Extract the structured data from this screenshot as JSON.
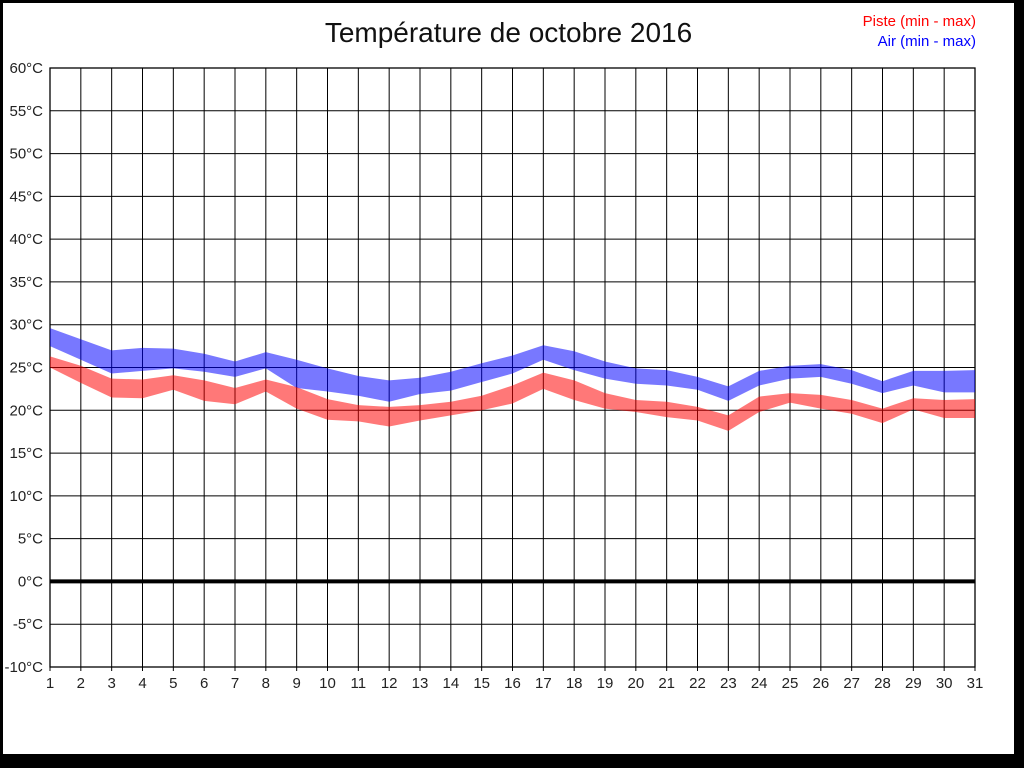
{
  "title": "Température de octobre 2016",
  "legend": {
    "piste": {
      "label": "Piste (min - max)",
      "color": "#ff0000"
    },
    "air": {
      "label": "Air (min - max)",
      "color": "#0000ff"
    }
  },
  "chart_data": {
    "type": "area",
    "title": "Température de octobre 2016",
    "xlabel": "",
    "ylabel": "",
    "ylim": [
      -10,
      60
    ],
    "ytick_step": 5,
    "y_tick_labels": [
      "-10°C",
      "-5°C",
      "0°C",
      "5°C",
      "10°C",
      "15°C",
      "20°C",
      "25°C",
      "30°C",
      "35°C",
      "40°C",
      "45°C",
      "50°C",
      "55°C",
      "60°C"
    ],
    "x": [
      1,
      2,
      3,
      4,
      5,
      6,
      7,
      8,
      9,
      10,
      11,
      12,
      13,
      14,
      15,
      16,
      17,
      18,
      19,
      20,
      21,
      22,
      23,
      24,
      25,
      26,
      27,
      28,
      29,
      30,
      31
    ],
    "grid": true,
    "zero_line": true,
    "legend_position": "top-right",
    "band_opacity": 0.53,
    "series": [
      {
        "name": "Air (min - max)",
        "band": "min-max",
        "color": "#0000ff",
        "max": [
          29.6,
          28.3,
          27.0,
          27.3,
          27.2,
          26.6,
          25.7,
          26.8,
          25.9,
          24.9,
          24.0,
          23.5,
          23.8,
          24.5,
          25.5,
          26.4,
          27.6,
          26.9,
          25.7,
          24.9,
          24.7,
          23.9,
          22.8,
          24.6,
          25.2,
          25.4,
          24.7,
          23.4,
          24.6,
          24.6,
          24.7
        ],
        "min": [
          27.5,
          25.9,
          24.3,
          24.6,
          24.9,
          24.5,
          23.9,
          24.9,
          22.6,
          22.2,
          21.7,
          21.0,
          21.9,
          22.3,
          23.3,
          24.3,
          25.9,
          24.7,
          23.7,
          23.1,
          22.9,
          22.4,
          21.1,
          22.9,
          23.7,
          23.9,
          23.1,
          22.0,
          22.9,
          22.1,
          22.1
        ]
      },
      {
        "name": "Piste (min - max)",
        "band": "min-max",
        "color": "#ff0000",
        "max": [
          26.3,
          25.2,
          23.7,
          23.6,
          24.1,
          23.5,
          22.6,
          23.6,
          22.7,
          21.3,
          20.6,
          20.4,
          20.6,
          21.0,
          21.7,
          22.9,
          24.4,
          23.5,
          22.0,
          21.2,
          21.0,
          20.4,
          19.4,
          21.6,
          22.0,
          21.8,
          21.2,
          20.2,
          21.4,
          21.2,
          21.3
        ],
        "min": [
          25.0,
          23.2,
          21.5,
          21.4,
          22.4,
          21.1,
          20.7,
          22.2,
          20.2,
          18.9,
          18.7,
          18.1,
          18.8,
          19.4,
          20.0,
          20.8,
          22.5,
          21.2,
          20.2,
          19.8,
          19.2,
          18.8,
          17.6,
          19.8,
          20.9,
          20.2,
          19.6,
          18.5,
          20.1,
          19.1,
          19.1
        ]
      }
    ]
  }
}
